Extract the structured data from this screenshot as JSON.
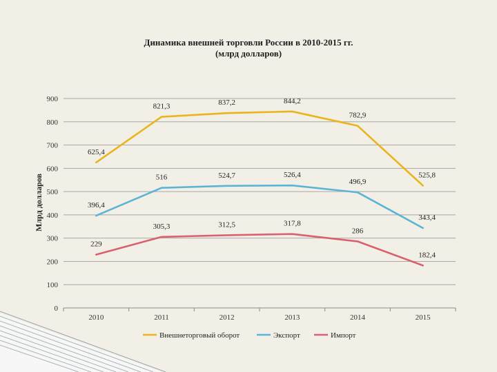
{
  "chart_data": {
    "type": "line",
    "title": "Динамика внешней торговли России в 2010-2015 гг.",
    "subtitle": "(млрд долларов)",
    "xlabel": "",
    "ylabel": "Млрд долларов",
    "categories": [
      "2010",
      "2011",
      "2012",
      "2013",
      "2014",
      "2015"
    ],
    "ylim": [
      0,
      900
    ],
    "yticks": [
      0,
      100,
      200,
      300,
      400,
      500,
      600,
      700,
      800,
      900
    ],
    "grid": true,
    "legend_position": "bottom",
    "series": [
      {
        "name": "Внешнеторговый оборот",
        "color": "#e8b51c",
        "values": [
          625.4,
          821.3,
          837.2,
          844.2,
          782.9,
          525.8
        ],
        "labels": [
          "625,4",
          "821,3",
          "837,2",
          "844,2",
          "782,9",
          "525,8"
        ]
      },
      {
        "name": "Экспорт",
        "color": "#5bb4d6",
        "values": [
          396.4,
          516,
          524.7,
          526.4,
          496.9,
          343.4
        ],
        "labels": [
          "396,4",
          "516",
          "524,7",
          "526,4",
          "496,9",
          "343,4"
        ]
      },
      {
        "name": "Импорт",
        "color": "#d9616e",
        "values": [
          229,
          305.3,
          312.5,
          317.8,
          286,
          182.4
        ],
        "labels": [
          "229",
          "305,3",
          "312,5",
          "317,8",
          "286",
          "182,4"
        ]
      }
    ]
  }
}
